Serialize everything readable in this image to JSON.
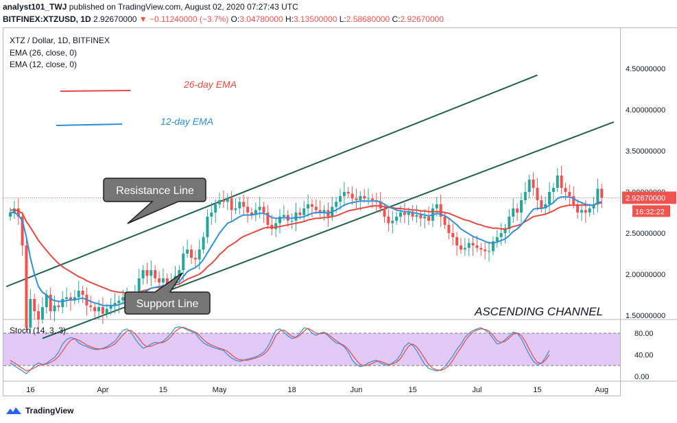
{
  "header": {
    "publisher_line_user": "analyst101_TWJ",
    "publisher_line_rest": "published on TradingView.com, August 02, 2020 07:27:43 UTC",
    "symbol": "BITFINEX:XTZUSD, 1D",
    "last": "2.92670000",
    "change": "−0.11240000 (−3.7%)",
    "ohlc": {
      "o_label": "O:",
      "o": "3.04780000",
      "h_label": "H:",
      "h": "3.13500000",
      "l_label": "L:",
      "l": "2.58680000",
      "c_label": "C:",
      "c": "2.92670000"
    }
  },
  "legend": {
    "series_title": "XTZ / Dollar, 1D, BITFINEX",
    "ema26_label": "EMA (26, close, 0)",
    "ema12_label": "EMA (12, close, 0)",
    "stoch_label": "Stoch (14, 3, 3)"
  },
  "annotations": {
    "ema26_note": "26-day EMA",
    "ema12_note": "12-day EMA",
    "resistance": "Resistance Line",
    "support": "Support Line",
    "pattern": "ASCENDING CHANNEL"
  },
  "price_tag": {
    "price": "2.92670000",
    "countdown": "16:32:22"
  },
  "colors": {
    "up": "#26a69a",
    "down": "#ef5350",
    "ema26": "#e5483f",
    "ema12": "#2f8ed8",
    "channel": "#1e5e4f",
    "stoch_k": "#2f8ed8",
    "stoch_d": "#e5483f",
    "stoch_fill": "#e1c8f5"
  },
  "footer": {
    "brand": "TradingView"
  },
  "chart_data": {
    "type": "candlestick",
    "title": "XTZ / Dollar, 1D, BITFINEX",
    "y_axis": {
      "ticks": [
        "4.50000000",
        "4.00000000",
        "3.50000000",
        "3.00000000",
        "2.50000000",
        "2.00000000",
        "1.50000000"
      ],
      "range": [
        1.2,
        5.0
      ]
    },
    "x_axis": {
      "ticks": [
        "16",
        "Apr",
        "15",
        "May",
        "18",
        "Jun",
        "15",
        "Jul",
        "15",
        "Aug"
      ]
    },
    "stoch_axis": {
      "ticks": [
        "80.00",
        "40.00",
        "0.00"
      ],
      "range": [
        -2,
        100
      ]
    },
    "closes": [
      2.75,
      2.8,
      2.7,
      2.35,
      1.35,
      1.7,
      1.55,
      1.45,
      1.6,
      1.75,
      1.55,
      1.62,
      1.6,
      1.7,
      1.72,
      1.68,
      1.72,
      1.8,
      1.75,
      1.62,
      1.6,
      1.55,
      1.6,
      1.52,
      1.58,
      1.62,
      1.65,
      1.68,
      1.72,
      1.72,
      1.7,
      1.78,
      1.95,
      2.05,
      1.98,
      2.05,
      1.95,
      1.9,
      1.95,
      1.88,
      1.92,
      1.98,
      2.05,
      2.25,
      2.3,
      2.2,
      2.18,
      2.3,
      2.45,
      2.7,
      2.75,
      2.85,
      2.9,
      2.88,
      2.92,
      2.78,
      2.8,
      2.88,
      2.82,
      2.75,
      2.72,
      2.78,
      2.82,
      2.75,
      2.6,
      2.55,
      2.62,
      2.7,
      2.72,
      2.65,
      2.65,
      2.75,
      2.72,
      2.8,
      2.85,
      2.82,
      2.78,
      2.75,
      2.78,
      2.7,
      2.82,
      2.88,
      2.95,
      3.0,
      2.98,
      2.92,
      2.9,
      2.95,
      2.92,
      2.92,
      2.9,
      2.88,
      2.8,
      2.7,
      2.62,
      2.65,
      2.7,
      2.75,
      2.72,
      2.75,
      2.7,
      2.72,
      2.68,
      2.7,
      2.65,
      2.8,
      2.85,
      2.7,
      2.6,
      2.5,
      2.45,
      2.35,
      2.3,
      2.32,
      2.38,
      2.35,
      2.32,
      2.3,
      2.28,
      2.28,
      2.4,
      2.45,
      2.5,
      2.55,
      2.7,
      2.8,
      2.75,
      2.9,
      3.0,
      3.15,
      3.05,
      2.9,
      2.8,
      2.85,
      3.0,
      3.05,
      3.2,
      3.05,
      3.0,
      2.95,
      2.85,
      2.75,
      2.78,
      2.75,
      2.8,
      2.85,
      3.04,
      2.93
    ],
    "ema12": [
      2.75,
      2.75,
      2.72,
      2.65,
      2.45,
      2.2,
      2.0,
      1.85,
      1.78,
      1.75,
      1.7,
      1.68,
      1.67,
      1.67,
      1.68,
      1.69,
      1.69,
      1.7,
      1.71,
      1.69,
      1.67,
      1.65,
      1.64,
      1.62,
      1.62,
      1.62,
      1.62,
      1.63,
      1.65,
      1.66,
      1.66,
      1.68,
      1.72,
      1.77,
      1.8,
      1.83,
      1.84,
      1.85,
      1.86,
      1.86,
      1.87,
      1.89,
      1.91,
      1.97,
      2.03,
      2.06,
      2.08,
      2.12,
      2.18,
      2.26,
      2.34,
      2.42,
      2.5,
      2.56,
      2.62,
      2.64,
      2.67,
      2.7,
      2.72,
      2.72,
      2.72,
      2.73,
      2.74,
      2.74,
      2.72,
      2.69,
      2.68,
      2.68,
      2.69,
      2.68,
      2.68,
      2.69,
      2.69,
      2.7,
      2.72,
      2.74,
      2.75,
      2.75,
      2.75,
      2.74,
      2.76,
      2.78,
      2.81,
      2.84,
      2.86,
      2.87,
      2.88,
      2.89,
      2.89,
      2.89,
      2.89,
      2.89,
      2.88,
      2.85,
      2.82,
      2.8,
      2.78,
      2.77,
      2.76,
      2.76,
      2.75,
      2.74,
      2.73,
      2.72,
      2.71,
      2.72,
      2.74,
      2.73,
      2.71,
      2.68,
      2.64,
      2.6,
      2.55,
      2.52,
      2.49,
      2.46,
      2.44,
      2.42,
      2.4,
      2.38,
      2.38,
      2.39,
      2.41,
      2.43,
      2.47,
      2.52,
      2.55,
      2.6,
      2.66,
      2.73,
      2.79,
      2.8,
      2.8,
      2.81,
      2.84,
      2.87,
      2.92,
      2.94,
      2.94,
      2.94,
      2.92,
      2.89,
      2.87,
      2.85,
      2.84,
      2.84,
      2.87,
      2.88
    ],
    "ema26": [
      2.78,
      2.78,
      2.77,
      2.74,
      2.64,
      2.57,
      2.49,
      2.41,
      2.35,
      2.29,
      2.23,
      2.18,
      2.13,
      2.09,
      2.06,
      2.03,
      2.0,
      1.97,
      1.95,
      1.92,
      1.9,
      1.88,
      1.86,
      1.84,
      1.82,
      1.8,
      1.79,
      1.78,
      1.78,
      1.77,
      1.77,
      1.77,
      1.78,
      1.8,
      1.81,
      1.83,
      1.84,
      1.84,
      1.85,
      1.85,
      1.86,
      1.87,
      1.88,
      1.91,
      1.94,
      1.96,
      1.98,
      2.0,
      2.04,
      2.09,
      2.13,
      2.18,
      2.24,
      2.28,
      2.33,
      2.36,
      2.39,
      2.43,
      2.46,
      2.48,
      2.5,
      2.52,
      2.54,
      2.56,
      2.57,
      2.57,
      2.57,
      2.58,
      2.59,
      2.6,
      2.61,
      2.62,
      2.63,
      2.64,
      2.66,
      2.67,
      2.68,
      2.68,
      2.69,
      2.69,
      2.7,
      2.71,
      2.73,
      2.75,
      2.77,
      2.78,
      2.79,
      2.8,
      2.81,
      2.82,
      2.83,
      2.83,
      2.83,
      2.82,
      2.81,
      2.81,
      2.8,
      2.8,
      2.79,
      2.79,
      2.78,
      2.78,
      2.77,
      2.77,
      2.76,
      2.76,
      2.76,
      2.76,
      2.75,
      2.74,
      2.72,
      2.7,
      2.68,
      2.66,
      2.65,
      2.63,
      2.61,
      2.6,
      2.58,
      2.57,
      2.56,
      2.56,
      2.55,
      2.55,
      2.56,
      2.58,
      2.59,
      2.61,
      2.64,
      2.67,
      2.7,
      2.71,
      2.72,
      2.73,
      2.75,
      2.77,
      2.8,
      2.82,
      2.83,
      2.84,
      2.84,
      2.84,
      2.84,
      2.84,
      2.84,
      2.84,
      2.86,
      2.87
    ],
    "stoch_k": [
      25,
      20,
      15,
      10,
      5,
      12,
      20,
      25,
      22,
      24,
      30,
      35,
      45,
      60,
      68,
      72,
      70,
      62,
      58,
      55,
      52,
      50,
      50,
      52,
      55,
      60,
      65,
      75,
      85,
      88,
      82,
      70,
      60,
      52,
      55,
      60,
      63,
      62,
      65,
      72,
      80,
      90,
      92,
      90,
      86,
      83,
      80,
      70,
      62,
      58,
      55,
      52,
      50,
      48,
      40,
      34,
      30,
      28,
      30,
      32,
      34,
      36,
      40,
      45,
      55,
      70,
      85,
      88,
      82,
      75,
      70,
      72,
      80,
      90,
      88,
      80,
      76,
      80,
      82,
      75,
      68,
      62,
      60,
      55,
      45,
      30,
      22,
      18,
      20,
      25,
      28,
      30,
      25,
      22,
      20,
      25,
      30,
      40,
      55,
      62,
      58,
      48,
      35,
      22,
      15,
      12,
      10,
      12,
      18,
      28,
      38,
      50,
      60,
      72,
      80,
      85,
      88,
      90,
      86,
      80,
      70,
      60,
      62,
      68,
      75,
      82,
      80,
      70,
      55,
      40,
      28,
      22,
      24,
      35,
      48
    ],
    "stoch_d": [
      30,
      25,
      20,
      15,
      10,
      12,
      16,
      20,
      22,
      23,
      26,
      30,
      37,
      47,
      58,
      67,
      70,
      67,
      63,
      58,
      55,
      52,
      51,
      51,
      53,
      56,
      60,
      68,
      77,
      84,
      85,
      79,
      70,
      60,
      55,
      56,
      59,
      62,
      63,
      67,
      74,
      83,
      89,
      91,
      88,
      85,
      82,
      76,
      68,
      62,
      58,
      55,
      52,
      50,
      46,
      40,
      34,
      31,
      30,
      30,
      32,
      34,
      37,
      41,
      48,
      60,
      75,
      84,
      86,
      80,
      74,
      72,
      76,
      84,
      89,
      85,
      80,
      79,
      80,
      78,
      72,
      66,
      61,
      57,
      50,
      40,
      30,
      22,
      20,
      21,
      24,
      28,
      28,
      25,
      22,
      23,
      26,
      33,
      45,
      56,
      60,
      55,
      45,
      33,
      22,
      15,
      12,
      11,
      14,
      20,
      30,
      42,
      53,
      65,
      75,
      82,
      86,
      88,
      87,
      84,
      76,
      66,
      63,
      65,
      71,
      78,
      80,
      76,
      65,
      50,
      36,
      26,
      24,
      30,
      40
    ]
  }
}
